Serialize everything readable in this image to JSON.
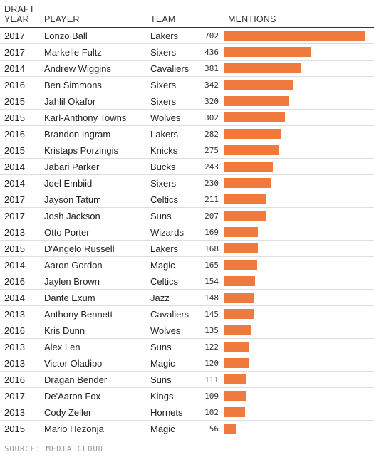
{
  "header": {
    "year_line1": "DRAFT",
    "year_line2": "YEAR",
    "player": "PLAYER",
    "team": "TEAM",
    "mentions": "MENTIONS"
  },
  "source": "SOURCE: MEDIA CLOUD",
  "colors": {
    "bar": "#f07a3d"
  },
  "chart_data": {
    "type": "table",
    "columns": [
      "DRAFT YEAR",
      "PLAYER",
      "TEAM",
      "MENTIONS"
    ],
    "max_value": 702,
    "rows": [
      {
        "year": "2017",
        "player": "Lonzo Ball",
        "team": "Lakers",
        "mentions": 702
      },
      {
        "year": "2017",
        "player": "Markelle Fultz",
        "team": "Sixers",
        "mentions": 436
      },
      {
        "year": "2014",
        "player": "Andrew Wiggins",
        "team": "Cavaliers",
        "mentions": 381
      },
      {
        "year": "2016",
        "player": "Ben Simmons",
        "team": "Sixers",
        "mentions": 342
      },
      {
        "year": "2015",
        "player": "Jahlil Okafor",
        "team": "Sixers",
        "mentions": 320
      },
      {
        "year": "2015",
        "player": "Karl-Anthony Towns",
        "team": "Wolves",
        "mentions": 302
      },
      {
        "year": "2016",
        "player": "Brandon Ingram",
        "team": "Lakers",
        "mentions": 282
      },
      {
        "year": "2015",
        "player": "Kristaps Porzingis",
        "team": "Knicks",
        "mentions": 275
      },
      {
        "year": "2014",
        "player": "Jabari Parker",
        "team": "Bucks",
        "mentions": 243
      },
      {
        "year": "2014",
        "player": "Joel Embiid",
        "team": "Sixers",
        "mentions": 230
      },
      {
        "year": "2017",
        "player": "Jayson Tatum",
        "team": "Celtics",
        "mentions": 211
      },
      {
        "year": "2017",
        "player": "Josh Jackson",
        "team": "Suns",
        "mentions": 207
      },
      {
        "year": "2013",
        "player": "Otto Porter",
        "team": "Wizards",
        "mentions": 169
      },
      {
        "year": "2015",
        "player": "D'Angelo Russell",
        "team": "Lakers",
        "mentions": 168
      },
      {
        "year": "2014",
        "player": "Aaron Gordon",
        "team": "Magic",
        "mentions": 165
      },
      {
        "year": "2016",
        "player": "Jaylen Brown",
        "team": "Celtics",
        "mentions": 154
      },
      {
        "year": "2014",
        "player": "Dante Exum",
        "team": "Jazz",
        "mentions": 148
      },
      {
        "year": "2013",
        "player": "Anthony Bennett",
        "team": "Cavaliers",
        "mentions": 145
      },
      {
        "year": "2016",
        "player": "Kris Dunn",
        "team": "Wolves",
        "mentions": 135
      },
      {
        "year": "2013",
        "player": "Alex Len",
        "team": "Suns",
        "mentions": 122
      },
      {
        "year": "2013",
        "player": "Victor Oladipo",
        "team": "Magic",
        "mentions": 120
      },
      {
        "year": "2016",
        "player": "Dragan Bender",
        "team": "Suns",
        "mentions": 111
      },
      {
        "year": "2017",
        "player": "De'Aaron Fox",
        "team": "Kings",
        "mentions": 109
      },
      {
        "year": "2013",
        "player": "Cody Zeller",
        "team": "Hornets",
        "mentions": 102
      },
      {
        "year": "2015",
        "player": "Mario Hezonja",
        "team": "Magic",
        "mentions": 56
      }
    ]
  }
}
